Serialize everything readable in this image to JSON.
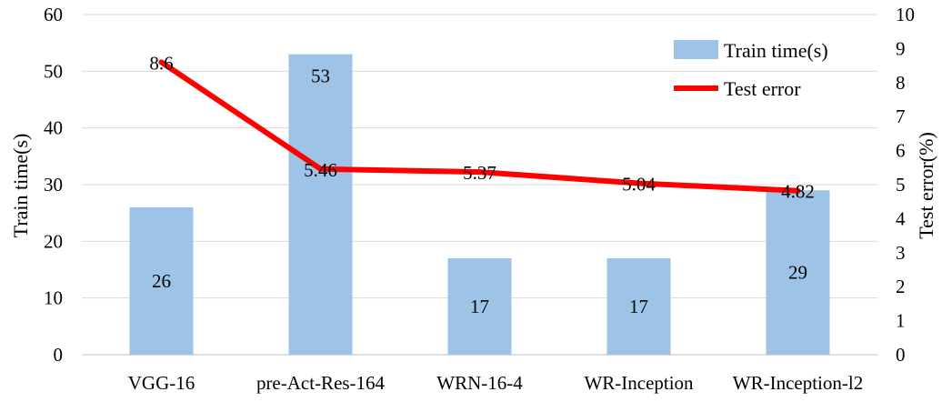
{
  "chart_data": {
    "type": "bar+line",
    "title": "",
    "categories": [
      "VGG-16",
      "pre-Act-Res-164",
      "WRN-16-4",
      "WR-Inception",
      "WR-Inception-l2"
    ],
    "series": [
      {
        "name": "Train time(s)",
        "type": "bar",
        "axis": "left",
        "color": "#9DC3E6",
        "values": [
          26,
          53,
          17,
          17,
          29
        ],
        "labels": [
          "26",
          "53",
          "17",
          "17",
          "29"
        ]
      },
      {
        "name": "Test error",
        "type": "line",
        "axis": "right",
        "color": "#FF0000",
        "values": [
          8.6,
          5.46,
          5.37,
          5.04,
          4.82
        ],
        "labels": [
          "8.6",
          "5.46",
          "5.37",
          "5.04",
          "4.82"
        ]
      }
    ],
    "y_left": {
      "label": "Train time(s)",
      "range": [
        0,
        60
      ],
      "ticks": [
        0,
        10,
        20,
        30,
        40,
        50,
        60
      ],
      "tick_labels": [
        "0",
        "10",
        "20",
        "30",
        "40",
        "50",
        "60"
      ]
    },
    "y_right": {
      "label": "Test error(%)",
      "range": [
        0,
        10
      ],
      "ticks": [
        0,
        1,
        2,
        3,
        4,
        5,
        6,
        7,
        8,
        9,
        10
      ],
      "tick_labels": [
        "0",
        "1",
        "2",
        "3",
        "4",
        "5",
        "6",
        "7",
        "8",
        "9",
        "10"
      ]
    },
    "grid": "horizontal",
    "legend": "top-right"
  }
}
